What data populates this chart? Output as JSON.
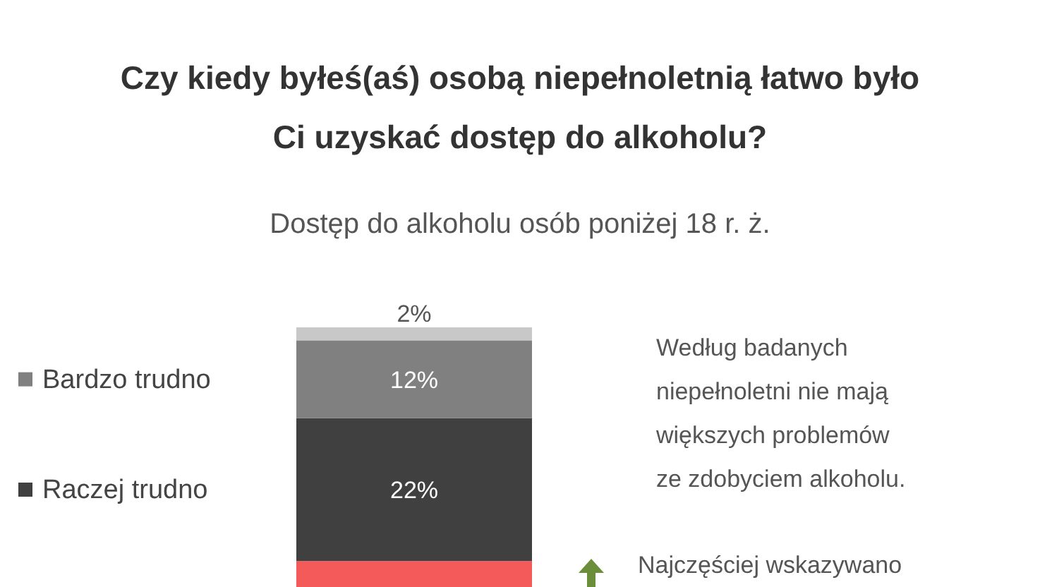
{
  "chart_data": {
    "type": "bar",
    "title": "Czy kiedy byłeś(aś) osobą niepełnoletnią łatwo było\nCi uzyskać dostęp do alkoholu?",
    "subtitle": "Dostęp do alkoholu osób poniżej 18 r. ż.",
    "categories": [
      null
    ],
    "stacked": true,
    "ylim": [
      0,
      40
    ],
    "legend": "left",
    "series": [
      {
        "color": "#f55a5a",
        "values": [
          4
        ],
        "value_labels": [
          null
        ]
      },
      {
        "name": "Raczej trudno",
        "color": "#404040",
        "values": [
          22
        ],
        "value_labels": [
          "22%"
        ]
      },
      {
        "name": "Bardzo trudno",
        "color": "#808080",
        "values": [
          12
        ],
        "value_labels": [
          "12%"
        ]
      },
      {
        "color": "#c8c8c8",
        "values": [
          2
        ],
        "value_labels": [
          "2%"
        ]
      }
    ],
    "annotations": [
      "Według badanych\nniepełnoletni nie mają\nwiększych problemów\nze zdobyciem alkoholu.",
      "Najczęściej wskazywano"
    ]
  }
}
